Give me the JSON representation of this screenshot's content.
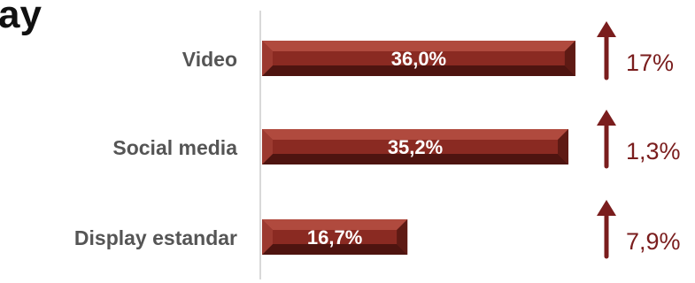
{
  "title_fragment": "ay",
  "colors": {
    "bar_fill": "#8a2a22",
    "bar_light": "#b04a3e",
    "bar_dark": "#4e1410",
    "bar_text": "#ffffff",
    "category_text": "#555555",
    "change_text": "#7a1d1d",
    "arrow": "#7a1d1d",
    "axis_line": "#d9d9d9"
  },
  "chart_data": {
    "type": "bar",
    "orientation": "horizontal",
    "categories": [
      "Video",
      "Social media",
      "Display estandar"
    ],
    "values": [
      36.0,
      35.2,
      16.7
    ],
    "value_labels": [
      "36,0%",
      "35,2%",
      "16,7%"
    ],
    "change_labels": [
      "17%",
      "1,3%",
      "7,9%"
    ],
    "change_direction": [
      "up",
      "up",
      "up"
    ],
    "xlim": [
      0,
      40
    ],
    "grid": false,
    "legend": "none"
  }
}
